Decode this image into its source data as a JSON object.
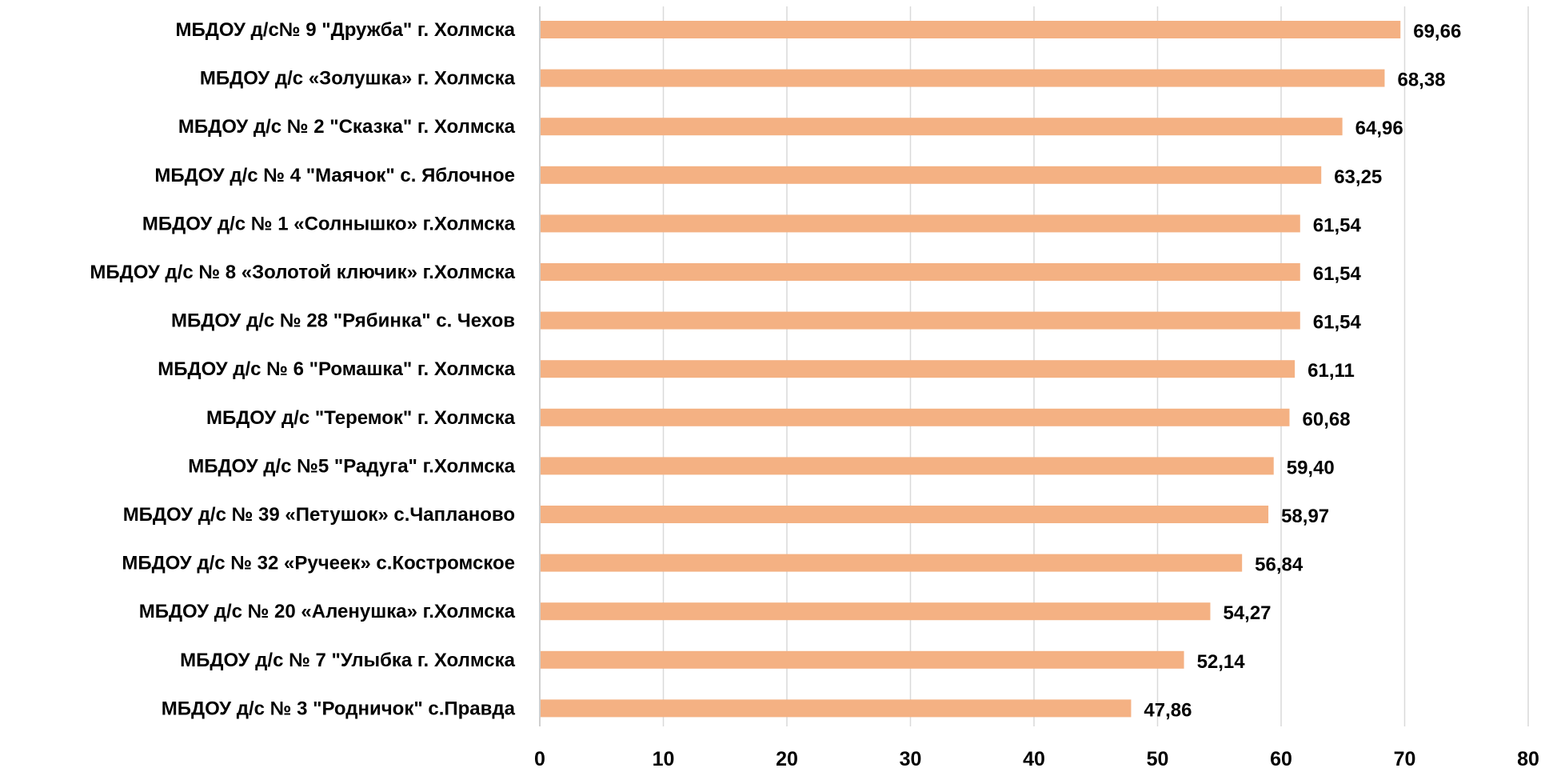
{
  "chart_data": {
    "type": "bar",
    "orientation": "horizontal",
    "categories": [
      "МБДОУ д/с№ 9 \"Дружба\" г. Холмска",
      "МБДОУ д/с «Золушка» г. Холмска",
      "МБДОУ д/с № 2 \"Сказка\"  г. Холмска",
      "МБДОУ д/с № 4 \"Маячок\" с. Яблочное",
      "МБДОУ д/с  № 1 «Солнышко» г.Холмска",
      "МБДОУ д/с № 8 «Золотой ключик» г.Холмска",
      "МБДОУ д/с № 28 \"Рябинка\" с. Чехов",
      "МБДОУ д/с № 6 \"Ромашка\" г. Холмска",
      "МБДОУ д/с \"Теремок\" г. Холмска",
      "МБДОУ д/с №5 \"Радуга\" г.Холмска",
      "МБДОУ д/с № 39 «Петушок» с.Чапланово",
      "МБДОУ д/с № 32 «Ручеек» с.Костромское",
      "МБДОУ д/с № 20 «Аленушка» г.Холмска",
      "МБДОУ д/с № 7 \"Улыбка г. Холмска",
      "МБДОУ д/с № 3 \"Родничок\" с.Правда"
    ],
    "values": [
      69.66,
      68.38,
      64.96,
      63.25,
      61.54,
      61.54,
      61.54,
      61.11,
      60.68,
      59.4,
      58.97,
      56.84,
      54.27,
      52.14,
      47.86
    ],
    "value_labels": [
      "69,66",
      "68,38",
      "64,96",
      "63,25",
      "61,54",
      "61,54",
      "61,54",
      "61,11",
      "60,68",
      "59,40",
      "58,97",
      "56,84",
      "54,27",
      "52,14",
      "47,86"
    ],
    "xlim": [
      0,
      80
    ],
    "x_ticks": [
      "0",
      "10",
      "20",
      "30",
      "40",
      "50",
      "60",
      "70",
      "80"
    ],
    "grid": "vertical",
    "legend": "none",
    "title": "",
    "xlabel": "",
    "ylabel": "",
    "colors": {
      "bar": "#F4B183",
      "grid": "#D9D9D9",
      "axis": "#BFBFBF",
      "text": "#000000"
    }
  }
}
